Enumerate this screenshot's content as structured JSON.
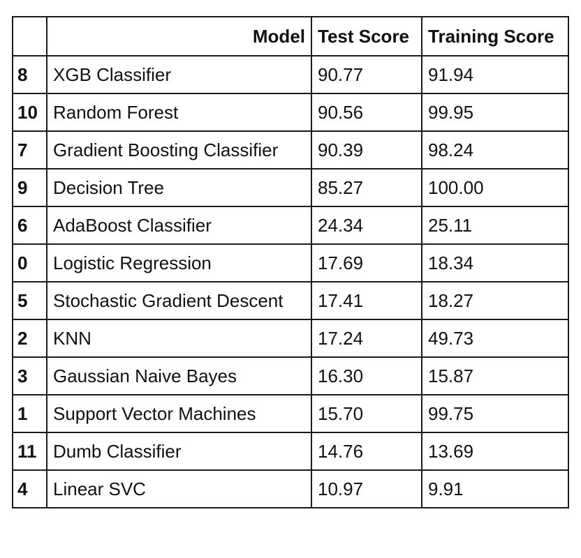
{
  "table": {
    "headers": {
      "index": "",
      "model": "Model",
      "test_score": "Test Score",
      "training_score": "Training Score"
    },
    "rows": [
      {
        "index": "8",
        "model": "XGB Classifier",
        "test_score": "90.77",
        "training_score": "91.94"
      },
      {
        "index": "10",
        "model": "Random Forest",
        "test_score": "90.56",
        "training_score": "99.95"
      },
      {
        "index": "7",
        "model": "Gradient Boosting Classifier",
        "test_score": "90.39",
        "training_score": "98.24"
      },
      {
        "index": "9",
        "model": "Decision Tree",
        "test_score": "85.27",
        "training_score": "100.00"
      },
      {
        "index": "6",
        "model": "AdaBoost Classifier",
        "test_score": "24.34",
        "training_score": "25.11"
      },
      {
        "index": "0",
        "model": "Logistic Regression",
        "test_score": "17.69",
        "training_score": "18.34"
      },
      {
        "index": "5",
        "model": "Stochastic Gradient Descent",
        "test_score": "17.41",
        "training_score": "18.27"
      },
      {
        "index": "2",
        "model": "KNN",
        "test_score": "17.24",
        "training_score": "49.73"
      },
      {
        "index": "3",
        "model": "Gaussian Naive Bayes",
        "test_score": "16.30",
        "training_score": "15.87"
      },
      {
        "index": "1",
        "model": "Support Vector Machines",
        "test_score": "15.70",
        "training_score": "99.75"
      },
      {
        "index": "11",
        "model": "Dumb Classifier",
        "test_score": "14.76",
        "training_score": "13.69"
      },
      {
        "index": "4",
        "model": "Linear SVC",
        "test_score": "10.97",
        "training_score": "9.91"
      }
    ]
  }
}
